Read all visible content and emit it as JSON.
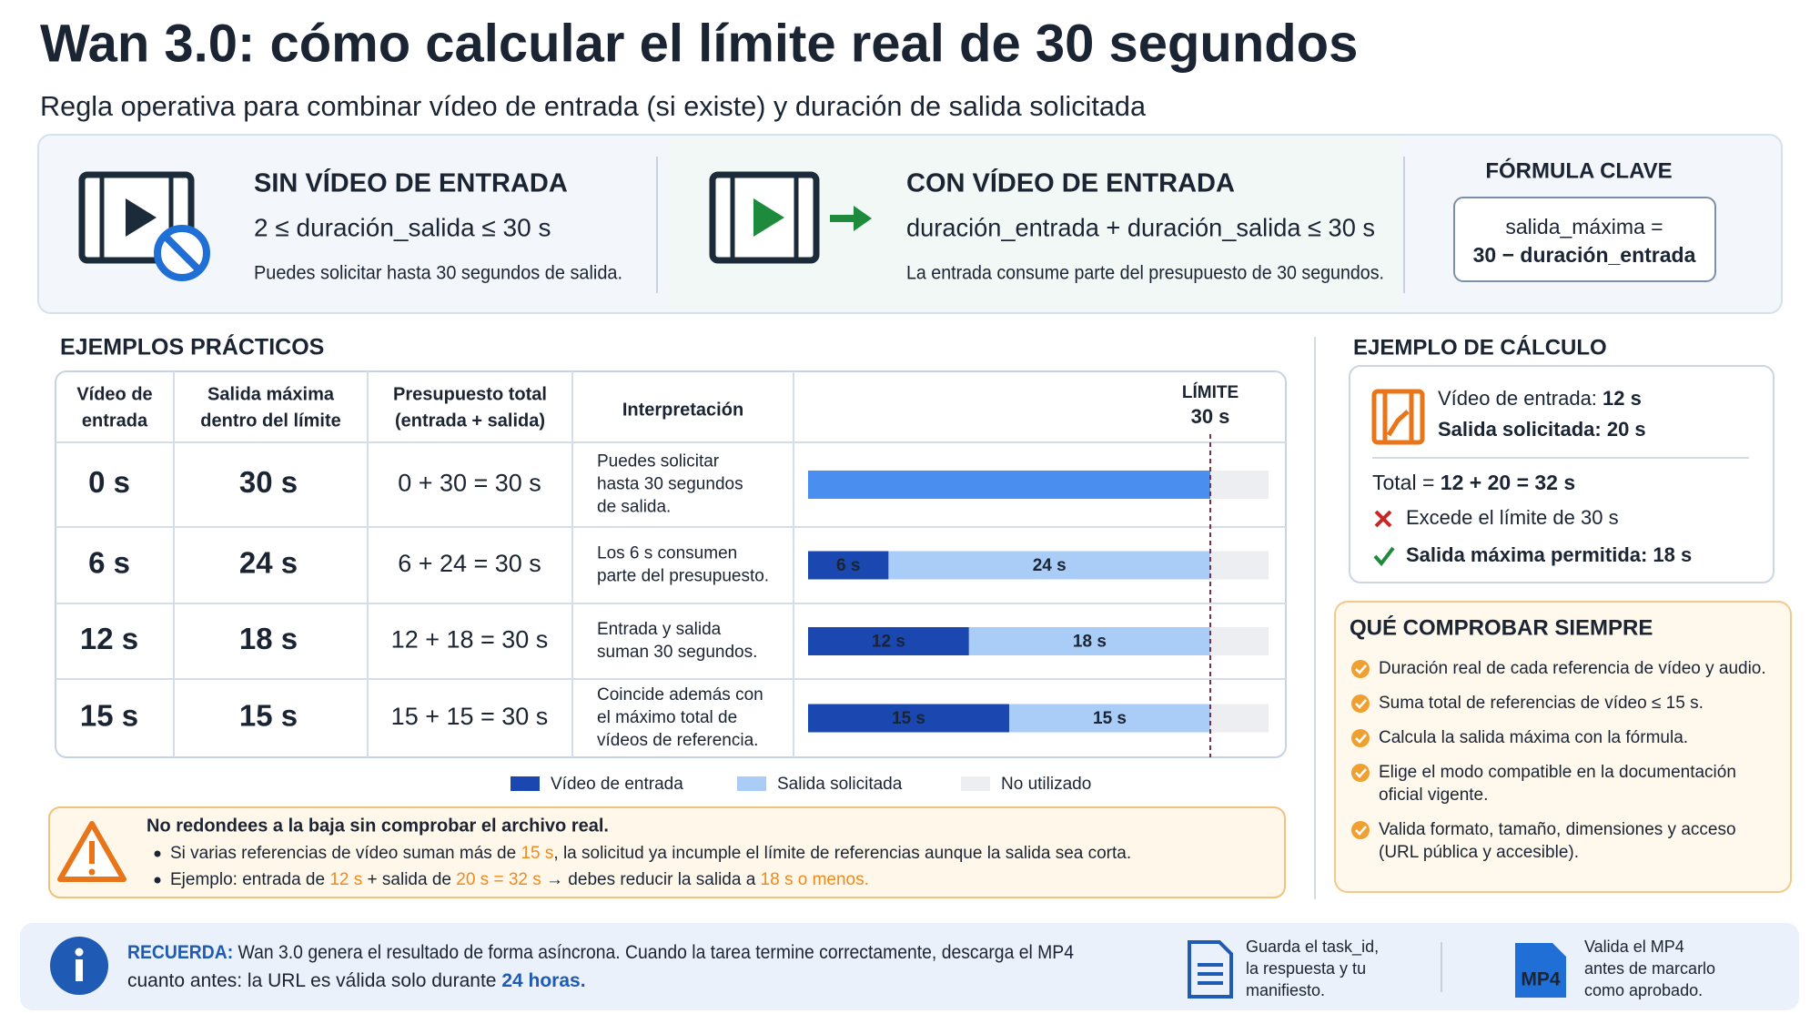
{
  "header": {
    "title": "Wan 3.0: cómo calcular el límite real de 30 segundos",
    "subtitle": "Regla operativa para combinar vídeo de entrada (si existe) y duración de salida solicitada"
  },
  "modes": [
    {
      "title": "SIN VÍDEO DE ENTRADA",
      "formula": "2 ≤ duración_salida ≤ 30 s",
      "note": "Puedes solicitar hasta 30 segundos de salida."
    },
    {
      "title": "CON VÍDEO DE ENTRADA",
      "formula": "duración_entrada + duración_salida ≤ 30 s",
      "note": "La entrada consume parte del presupuesto de 30 segundos."
    }
  ],
  "key_formula": {
    "title": "FÓRMULA CLAVE",
    "lines": [
      "salida_máxima =",
      "30 − duración_entrada"
    ]
  },
  "examples": {
    "title": "EJEMPLOS PRÁCTICOS",
    "headers": [
      [
        "Vídeo de",
        "entrada"
      ],
      [
        "Salida máxima",
        "dentro del límite"
      ],
      [
        "Presupuesto total",
        "(entrada + salida)"
      ],
      [
        "Interpretación"
      ]
    ],
    "limit": {
      "label": "LÍMITE",
      "value_label": "30 s",
      "value": 30
    },
    "colors": {
      "input": "#1a47b0",
      "output": "#a9cdf7",
      "unused": "#eceef1"
    },
    "rows": [
      {
        "input": "0 s",
        "output": "30 s",
        "total": "0 + 30 = 30 s",
        "interpretation": [
          "Puedes solicitar",
          "hasta 30 segundos",
          "de salida."
        ],
        "bar": {
          "input": 0,
          "output": 30,
          "output_color": "#4a8ef0"
        }
      },
      {
        "input": "6 s",
        "output": "24 s",
        "total": "6 + 24 = 30 s",
        "interpretation": [
          "Los 6 s consumen",
          "parte del presupuesto."
        ],
        "bar": {
          "input": 6,
          "output": 24,
          "input_label": "6 s",
          "output_label": "24 s"
        }
      },
      {
        "input": "12 s",
        "output": "18 s",
        "total": "12 + 18 = 30 s",
        "interpretation": [
          "Entrada y salida",
          "suman 30 segundos."
        ],
        "bar": {
          "input": 12,
          "output": 18,
          "input_label": "12 s",
          "output_label": "18 s"
        }
      },
      {
        "input": "15 s",
        "output": "15 s",
        "total": "15 + 15 = 30 s",
        "interpretation": [
          "Coincide además con",
          "el máximo total de",
          "vídeos de referencia."
        ],
        "bar": {
          "input": 15,
          "output": 15,
          "input_label": "15 s",
          "output_label": "15 s"
        }
      }
    ],
    "legend": [
      "Vídeo de entrada",
      "Salida solicitada",
      "No utilizado"
    ]
  },
  "warning": {
    "title": "No redondees a la baja sin comprobar el archivo real.",
    "bullets": [
      [
        "Si varias referencias de vídeo suman más de ",
        "15 s",
        ", la solicitud ya incumple el límite de referencias aunque la salida sea corta."
      ],
      [
        "Ejemplo: entrada de ",
        "12 s",
        " + salida de ",
        "20 s = 32 s",
        " → debes reducir la salida a ",
        "18 s o menos."
      ]
    ]
  },
  "calc_example": {
    "title": "EJEMPLO DE CÁLCULO",
    "input": [
      "Vídeo de entrada: ",
      "12 s"
    ],
    "requested": "Salida solicitada: 20 s",
    "total": [
      "Total = ",
      "12 + 20 = 32 s"
    ],
    "exceeds": "Excede el límite de 30 s",
    "allowed": "Salida máxima permitida: 18 s"
  },
  "checklist": {
    "title": "QUÉ COMPROBAR SIEMPRE",
    "items": [
      [
        "Duración real de cada referencia de vídeo y audio."
      ],
      [
        "Suma total de referencias de vídeo ≤ 15 s."
      ],
      [
        "Calcula la salida máxima con la fórmula."
      ],
      [
        "Elige el modo compatible en la documentación",
        "oficial vigente."
      ],
      [
        "Valida formato, tamaño, dimensiones y acceso",
        "(URL pública y accesible)."
      ]
    ]
  },
  "footer": {
    "remember": [
      "RECUERDA:",
      " Wan 3.0 genera el resultado de forma asíncrona. Cuando la tarea termine correctamente, descarga el MP4"
    ],
    "remember_line2": [
      "cuanto antes: la URL es válida solo durante ",
      "24 horas."
    ],
    "save": [
      "Guarda el task_id,",
      "la respuesta y tu",
      "manifiesto."
    ],
    "mp4_label": "MP4",
    "validate": [
      "Valida el MP4",
      "antes de marcarlo",
      "como aprobado."
    ]
  }
}
